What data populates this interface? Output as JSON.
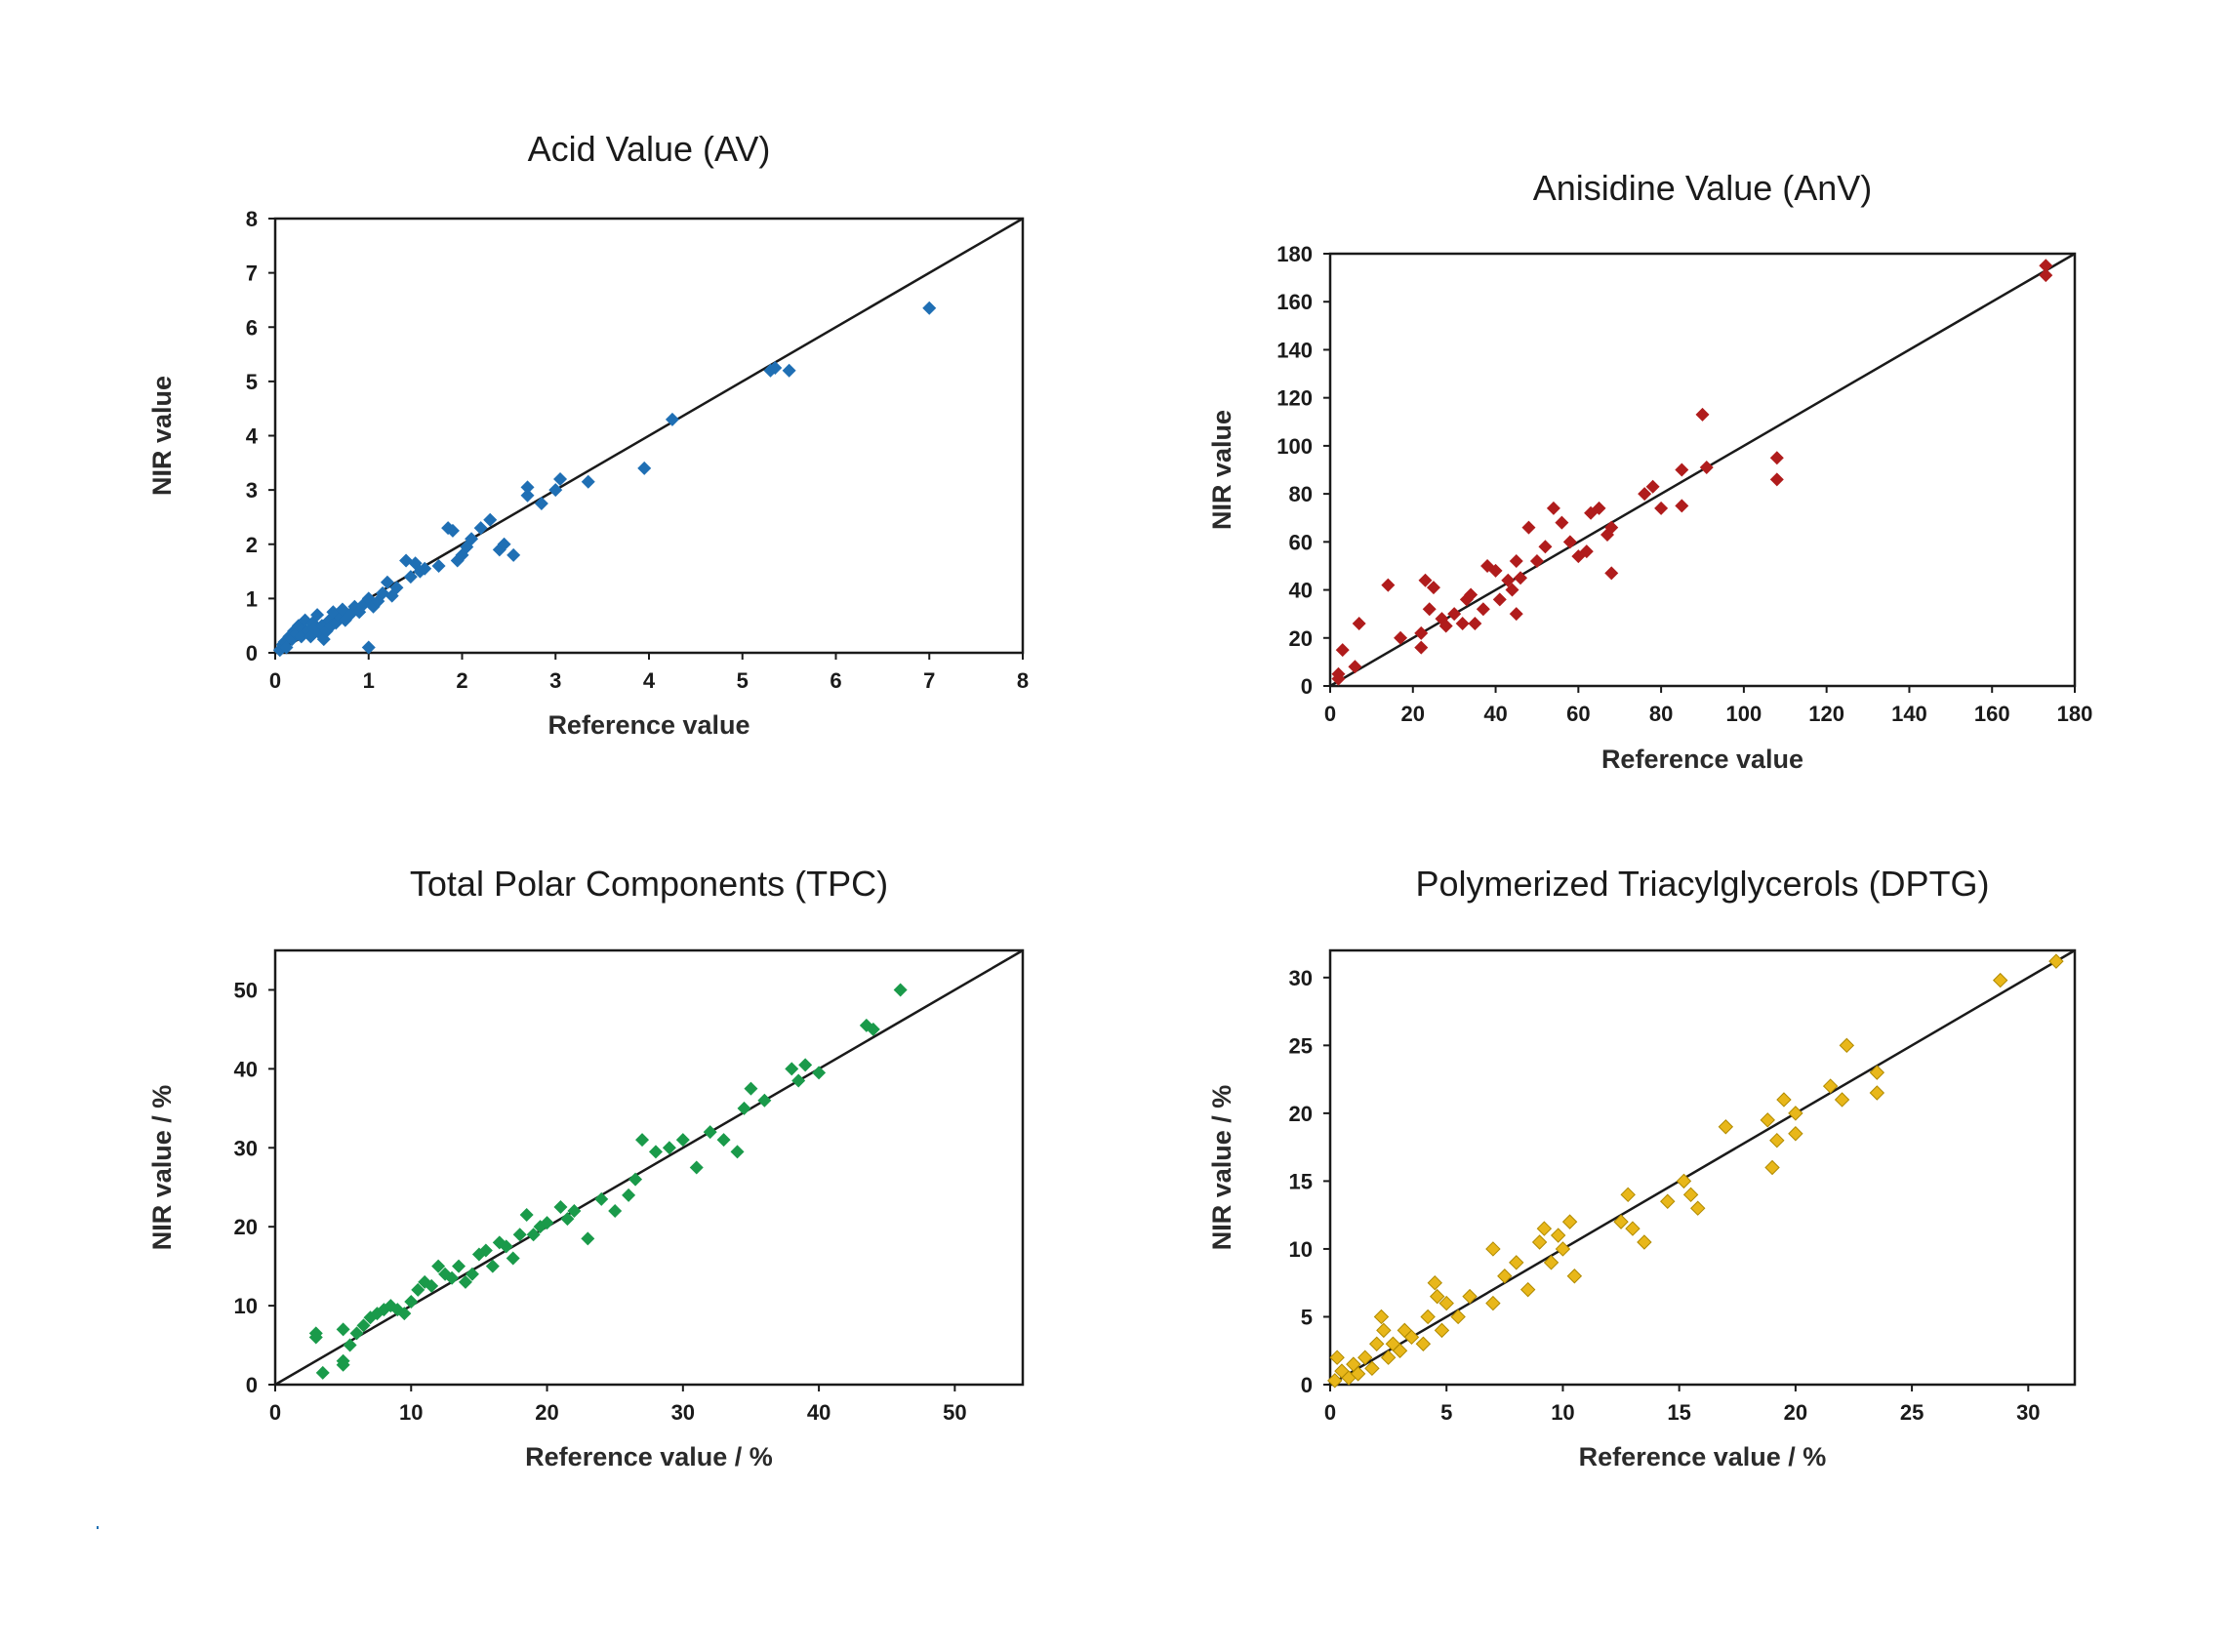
{
  "chart_data": [
    {
      "type": "scatter",
      "title": "Acid Value (AV)",
      "xlabel": "Reference value",
      "ylabel": "NIR value",
      "xlim": [
        0,
        8
      ],
      "ylim": [
        0,
        8
      ],
      "xticks": [
        "0",
        "1",
        "2",
        "3",
        "4",
        "5",
        "6",
        "7",
        "8"
      ],
      "yticks": [
        "0",
        "1",
        "2",
        "3",
        "4",
        "5",
        "6",
        "7",
        "8"
      ],
      "identity_line": true,
      "marker": "diamond",
      "color": "#1f6fb4",
      "series": [
        {
          "points": [
            [
              0.05,
              0.05
            ],
            [
              0.08,
              0.15
            ],
            [
              0.1,
              0.2
            ],
            [
              0.12,
              0.1
            ],
            [
              0.15,
              0.3
            ],
            [
              0.18,
              0.25
            ],
            [
              0.2,
              0.4
            ],
            [
              0.22,
              0.35
            ],
            [
              0.25,
              0.5
            ],
            [
              0.28,
              0.3
            ],
            [
              0.3,
              0.45
            ],
            [
              0.32,
              0.6
            ],
            [
              0.35,
              0.4
            ],
            [
              0.38,
              0.3
            ],
            [
              0.4,
              0.55
            ],
            [
              0.42,
              0.45
            ],
            [
              0.45,
              0.7
            ],
            [
              0.48,
              0.35
            ],
            [
              0.5,
              0.5
            ],
            [
              0.52,
              0.25
            ],
            [
              0.55,
              0.4
            ],
            [
              0.58,
              0.6
            ],
            [
              0.6,
              0.5
            ],
            [
              0.62,
              0.75
            ],
            [
              0.65,
              0.55
            ],
            [
              0.7,
              0.65
            ],
            [
              0.72,
              0.8
            ],
            [
              0.75,
              0.6
            ],
            [
              0.8,
              0.7
            ],
            [
              0.85,
              0.85
            ],
            [
              0.9,
              0.75
            ],
            [
              0.95,
              0.9
            ],
            [
              1.0,
              1.0
            ],
            [
              1.05,
              0.85
            ],
            [
              1.1,
              0.95
            ],
            [
              1.15,
              1.1
            ],
            [
              1.2,
              1.3
            ],
            [
              1.25,
              1.05
            ],
            [
              1.3,
              1.2
            ],
            [
              1.4,
              1.7
            ],
            [
              1.45,
              1.4
            ],
            [
              1.5,
              1.65
            ],
            [
              1.55,
              1.5
            ],
            [
              1.6,
              1.55
            ],
            [
              1.75,
              1.6
            ],
            [
              1.85,
              2.3
            ],
            [
              1.9,
              2.25
            ],
            [
              1.95,
              1.7
            ],
            [
              2.0,
              1.8
            ],
            [
              2.05,
              1.95
            ],
            [
              2.1,
              2.1
            ],
            [
              2.2,
              2.3
            ],
            [
              2.3,
              2.45
            ],
            [
              2.4,
              1.9
            ],
            [
              2.45,
              2.0
            ],
            [
              2.55,
              1.8
            ],
            [
              2.7,
              2.9
            ],
            [
              2.7,
              3.05
            ],
            [
              2.85,
              2.75
            ],
            [
              3.0,
              3.0
            ],
            [
              3.05,
              3.2
            ],
            [
              3.35,
              3.15
            ],
            [
              3.95,
              3.4
            ],
            [
              4.25,
              4.3
            ],
            [
              5.3,
              5.2
            ],
            [
              5.35,
              5.25
            ],
            [
              5.5,
              5.2
            ],
            [
              7.0,
              6.35
            ],
            [
              1.0,
              0.1
            ]
          ]
        }
      ]
    },
    {
      "type": "scatter",
      "title": "Anisidine Value (AnV)",
      "xlabel": "Reference value",
      "ylabel": "NIR value",
      "xlim": [
        0,
        180
      ],
      "ylim": [
        0,
        180
      ],
      "xticks": [
        "0",
        "20",
        "40",
        "60",
        "80",
        "100",
        "120",
        "140",
        "160",
        "180"
      ],
      "yticks": [
        "0",
        "20",
        "40",
        "60",
        "80",
        "100",
        "120",
        "140",
        "160",
        "180"
      ],
      "identity_line": true,
      "marker": "diamond",
      "color": "#b01c1c",
      "series": [
        {
          "points": [
            [
              2,
              3
            ],
            [
              2,
              5
            ],
            [
              3,
              15
            ],
            [
              6,
              8
            ],
            [
              7,
              26
            ],
            [
              14,
              42
            ],
            [
              17,
              20
            ],
            [
              22,
              16
            ],
            [
              22,
              22
            ],
            [
              23,
              44
            ],
            [
              24,
              32
            ],
            [
              25,
              41
            ],
            [
              27,
              28
            ],
            [
              28,
              25
            ],
            [
              30,
              30
            ],
            [
              32,
              26
            ],
            [
              33,
              36
            ],
            [
              34,
              38
            ],
            [
              35,
              26
            ],
            [
              37,
              32
            ],
            [
              38,
              50
            ],
            [
              40,
              48
            ],
            [
              41,
              36
            ],
            [
              43,
              44
            ],
            [
              44,
              40
            ],
            [
              45,
              30
            ],
            [
              45,
              52
            ],
            [
              46,
              45
            ],
            [
              48,
              66
            ],
            [
              50,
              52
            ],
            [
              52,
              58
            ],
            [
              54,
              74
            ],
            [
              56,
              68
            ],
            [
              58,
              60
            ],
            [
              60,
              54
            ],
            [
              62,
              56
            ],
            [
              63,
              72
            ],
            [
              65,
              74
            ],
            [
              67,
              63
            ],
            [
              68,
              66
            ],
            [
              68,
              47
            ],
            [
              76,
              80
            ],
            [
              78,
              83
            ],
            [
              80,
              74
            ],
            [
              85,
              75
            ],
            [
              85,
              90
            ],
            [
              90,
              113
            ],
            [
              91,
              91
            ],
            [
              108,
              95
            ],
            [
              108,
              86
            ],
            [
              173,
              175
            ],
            [
              173,
              171
            ]
          ]
        }
      ]
    },
    {
      "type": "scatter",
      "title": "Total Polar Components (TPC)",
      "xlabel": "Reference value / %",
      "ylabel": "NIR value / %",
      "xlim": [
        0,
        55
      ],
      "ylim": [
        0,
        55
      ],
      "xticks": [
        "0",
        "10",
        "20",
        "30",
        "40",
        "50"
      ],
      "yticks": [
        "0",
        "10",
        "20",
        "30",
        "40",
        "50"
      ],
      "identity_line": true,
      "marker": "diamond",
      "color": "#1a9a4a",
      "series": [
        {
          "points": [
            [
              3,
              6
            ],
            [
              3,
              6.5
            ],
            [
              3.5,
              1.5
            ],
            [
              5,
              3
            ],
            [
              5,
              2.5
            ],
            [
              5,
              7
            ],
            [
              5.5,
              5
            ],
            [
              6,
              6.5
            ],
            [
              6.5,
              7.5
            ],
            [
              7,
              8.5
            ],
            [
              7.5,
              9
            ],
            [
              8,
              9.5
            ],
            [
              8.5,
              10
            ],
            [
              9,
              9.5
            ],
            [
              9.5,
              9
            ],
            [
              10,
              10.5
            ],
            [
              10.5,
              12
            ],
            [
              11,
              13
            ],
            [
              11.5,
              12.5
            ],
            [
              12,
              15
            ],
            [
              12.5,
              14
            ],
            [
              13,
              13.5
            ],
            [
              13.5,
              15
            ],
            [
              14,
              13
            ],
            [
              14.5,
              14
            ],
            [
              15,
              16.5
            ],
            [
              15.5,
              17
            ],
            [
              16,
              15
            ],
            [
              16.5,
              18
            ],
            [
              17,
              17.5
            ],
            [
              17.5,
              16
            ],
            [
              18,
              19
            ],
            [
              18.5,
              21.5
            ],
            [
              19,
              19
            ],
            [
              19.5,
              20
            ],
            [
              20,
              20.5
            ],
            [
              21,
              22.5
            ],
            [
              21.5,
              21
            ],
            [
              22,
              22
            ],
            [
              23,
              18.5
            ],
            [
              24,
              23.5
            ],
            [
              25,
              22
            ],
            [
              26,
              24
            ],
            [
              26.5,
              26
            ],
            [
              27,
              31
            ],
            [
              28,
              29.5
            ],
            [
              29,
              30
            ],
            [
              30,
              31
            ],
            [
              31,
              27.5
            ],
            [
              32,
              32
            ],
            [
              33,
              31
            ],
            [
              34,
              29.5
            ],
            [
              34.5,
              35
            ],
            [
              35,
              37.5
            ],
            [
              36,
              36
            ],
            [
              38,
              40
            ],
            [
              38.5,
              38.5
            ],
            [
              39,
              40.5
            ],
            [
              40,
              39.5
            ],
            [
              43.5,
              45.5
            ],
            [
              44,
              45
            ],
            [
              46,
              50
            ]
          ]
        }
      ]
    },
    {
      "type": "scatter",
      "title": "Polymerized Triacylglycerols (DPTG)",
      "xlabel": "Reference value / %",
      "ylabel": "NIR value / %",
      "xlim": [
        0,
        32
      ],
      "ylim": [
        0,
        32
      ],
      "xticks": [
        "0",
        "5",
        "10",
        "15",
        "20",
        "25",
        "30"
      ],
      "yticks": [
        "0",
        "5",
        "10",
        "15",
        "20",
        "25",
        "30"
      ],
      "identity_line": true,
      "marker": "diamond",
      "color": "#e8b71a",
      "series": [
        {
          "points": [
            [
              0.2,
              0.3
            ],
            [
              0.3,
              2
            ],
            [
              0.5,
              1
            ],
            [
              0.8,
              0.5
            ],
            [
              1,
              1.5
            ],
            [
              1.2,
              0.8
            ],
            [
              1.5,
              2
            ],
            [
              1.8,
              1.2
            ],
            [
              2,
              3
            ],
            [
              2.2,
              5
            ],
            [
              2.3,
              4
            ],
            [
              2.5,
              2
            ],
            [
              2.7,
              3
            ],
            [
              3,
              2.5
            ],
            [
              3.2,
              4
            ],
            [
              3.5,
              3.5
            ],
            [
              4,
              3
            ],
            [
              4.2,
              5
            ],
            [
              4.5,
              7.5
            ],
            [
              4.6,
              6.5
            ],
            [
              4.8,
              4
            ],
            [
              5,
              6
            ],
            [
              5.5,
              5
            ],
            [
              6,
              6.5
            ],
            [
              7,
              10
            ],
            [
              7,
              6
            ],
            [
              7.5,
              8
            ],
            [
              8,
              9
            ],
            [
              8.5,
              7
            ],
            [
              9,
              10.5
            ],
            [
              9.2,
              11.5
            ],
            [
              9.5,
              9
            ],
            [
              9.8,
              11
            ],
            [
              10,
              10
            ],
            [
              10.3,
              12
            ],
            [
              10.5,
              8
            ],
            [
              12.5,
              12
            ],
            [
              12.8,
              14
            ],
            [
              13,
              11.5
            ],
            [
              13.5,
              10.5
            ],
            [
              14.5,
              13.5
            ],
            [
              15.2,
              15
            ],
            [
              15.5,
              14
            ],
            [
              15.8,
              13
            ],
            [
              17,
              19
            ],
            [
              18.8,
              19.5
            ],
            [
              19,
              16
            ],
            [
              19.2,
              18
            ],
            [
              19.5,
              21
            ],
            [
              20,
              20
            ],
            [
              20,
              18.5
            ],
            [
              21.5,
              22
            ],
            [
              22,
              21
            ],
            [
              22.2,
              25
            ],
            [
              23.5,
              23
            ],
            [
              23.5,
              21.5
            ],
            [
              28.8,
              29.8
            ],
            [
              31.2,
              31.2
            ]
          ]
        }
      ]
    }
  ]
}
